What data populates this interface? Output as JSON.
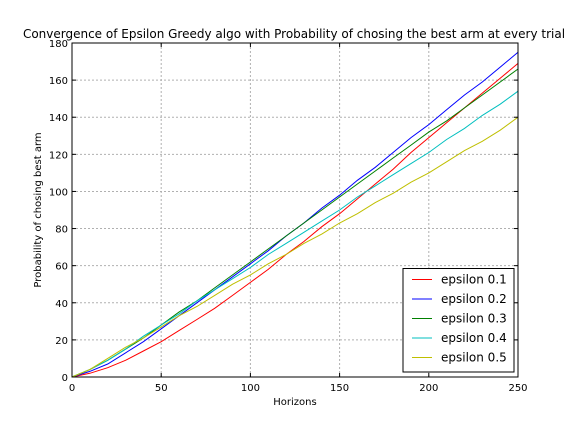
{
  "chart_data": {
    "type": "line",
    "title": "Convergence of Epsilon Greedy algo with Probability of chosing the best arm at every trial",
    "xlabel": "Horizons",
    "ylabel": "Probability of chosing best arm",
    "xlim": [
      0,
      250
    ],
    "ylim": [
      0,
      180
    ],
    "xticks": [
      "0",
      "50",
      "100",
      "150",
      "200",
      "250"
    ],
    "yticks": [
      "0",
      "20",
      "40",
      "60",
      "80",
      "100",
      "120",
      "140",
      "160",
      "180"
    ],
    "grid": true,
    "legend_position": "lower-right",
    "x": [
      0,
      10,
      20,
      30,
      40,
      50,
      60,
      70,
      80,
      90,
      100,
      110,
      120,
      130,
      140,
      150,
      160,
      170,
      180,
      190,
      200,
      210,
      220,
      230,
      240,
      250
    ],
    "series": [
      {
        "name": "epsilon 0.1",
        "color": "#ff0000",
        "values": [
          0,
          2,
          5,
          9,
          14,
          19,
          25,
          31,
          37,
          44,
          51,
          58,
          66,
          73,
          81,
          88,
          96,
          104,
          112,
          121,
          129,
          137,
          145,
          153,
          161,
          169
        ]
      },
      {
        "name": "epsilon 0.2",
        "color": "#0000ff",
        "values": [
          0,
          3,
          7,
          13,
          19,
          26,
          33,
          40,
          47,
          54,
          61,
          68,
          76,
          83,
          91,
          98,
          106,
          113,
          121,
          129,
          136,
          144,
          152,
          159,
          167,
          175
        ]
      },
      {
        "name": "epsilon 0.3",
        "color": "#008000",
        "values": [
          0,
          4,
          9,
          15,
          21,
          28,
          35,
          41,
          48,
          55,
          62,
          69,
          76,
          83,
          90,
          97,
          104,
          111,
          118,
          125,
          132,
          138,
          145,
          152,
          159,
          166
        ]
      },
      {
        "name": "epsilon 0.4",
        "color": "#00bfbf",
        "values": [
          0,
          4,
          9,
          15,
          22,
          28,
          34,
          41,
          47,
          53,
          59,
          66,
          72,
          78,
          84,
          90,
          97,
          103,
          109,
          115,
          121,
          128,
          134,
          141,
          147,
          154
        ]
      },
      {
        "name": "epsilon 0.5",
        "color": "#bfbf00",
        "values": [
          0,
          4,
          10,
          16,
          21,
          27,
          33,
          38,
          44,
          50,
          55,
          61,
          66,
          72,
          77,
          83,
          88,
          94,
          99,
          105,
          110,
          116,
          122,
          127,
          133,
          140
        ]
      }
    ]
  }
}
